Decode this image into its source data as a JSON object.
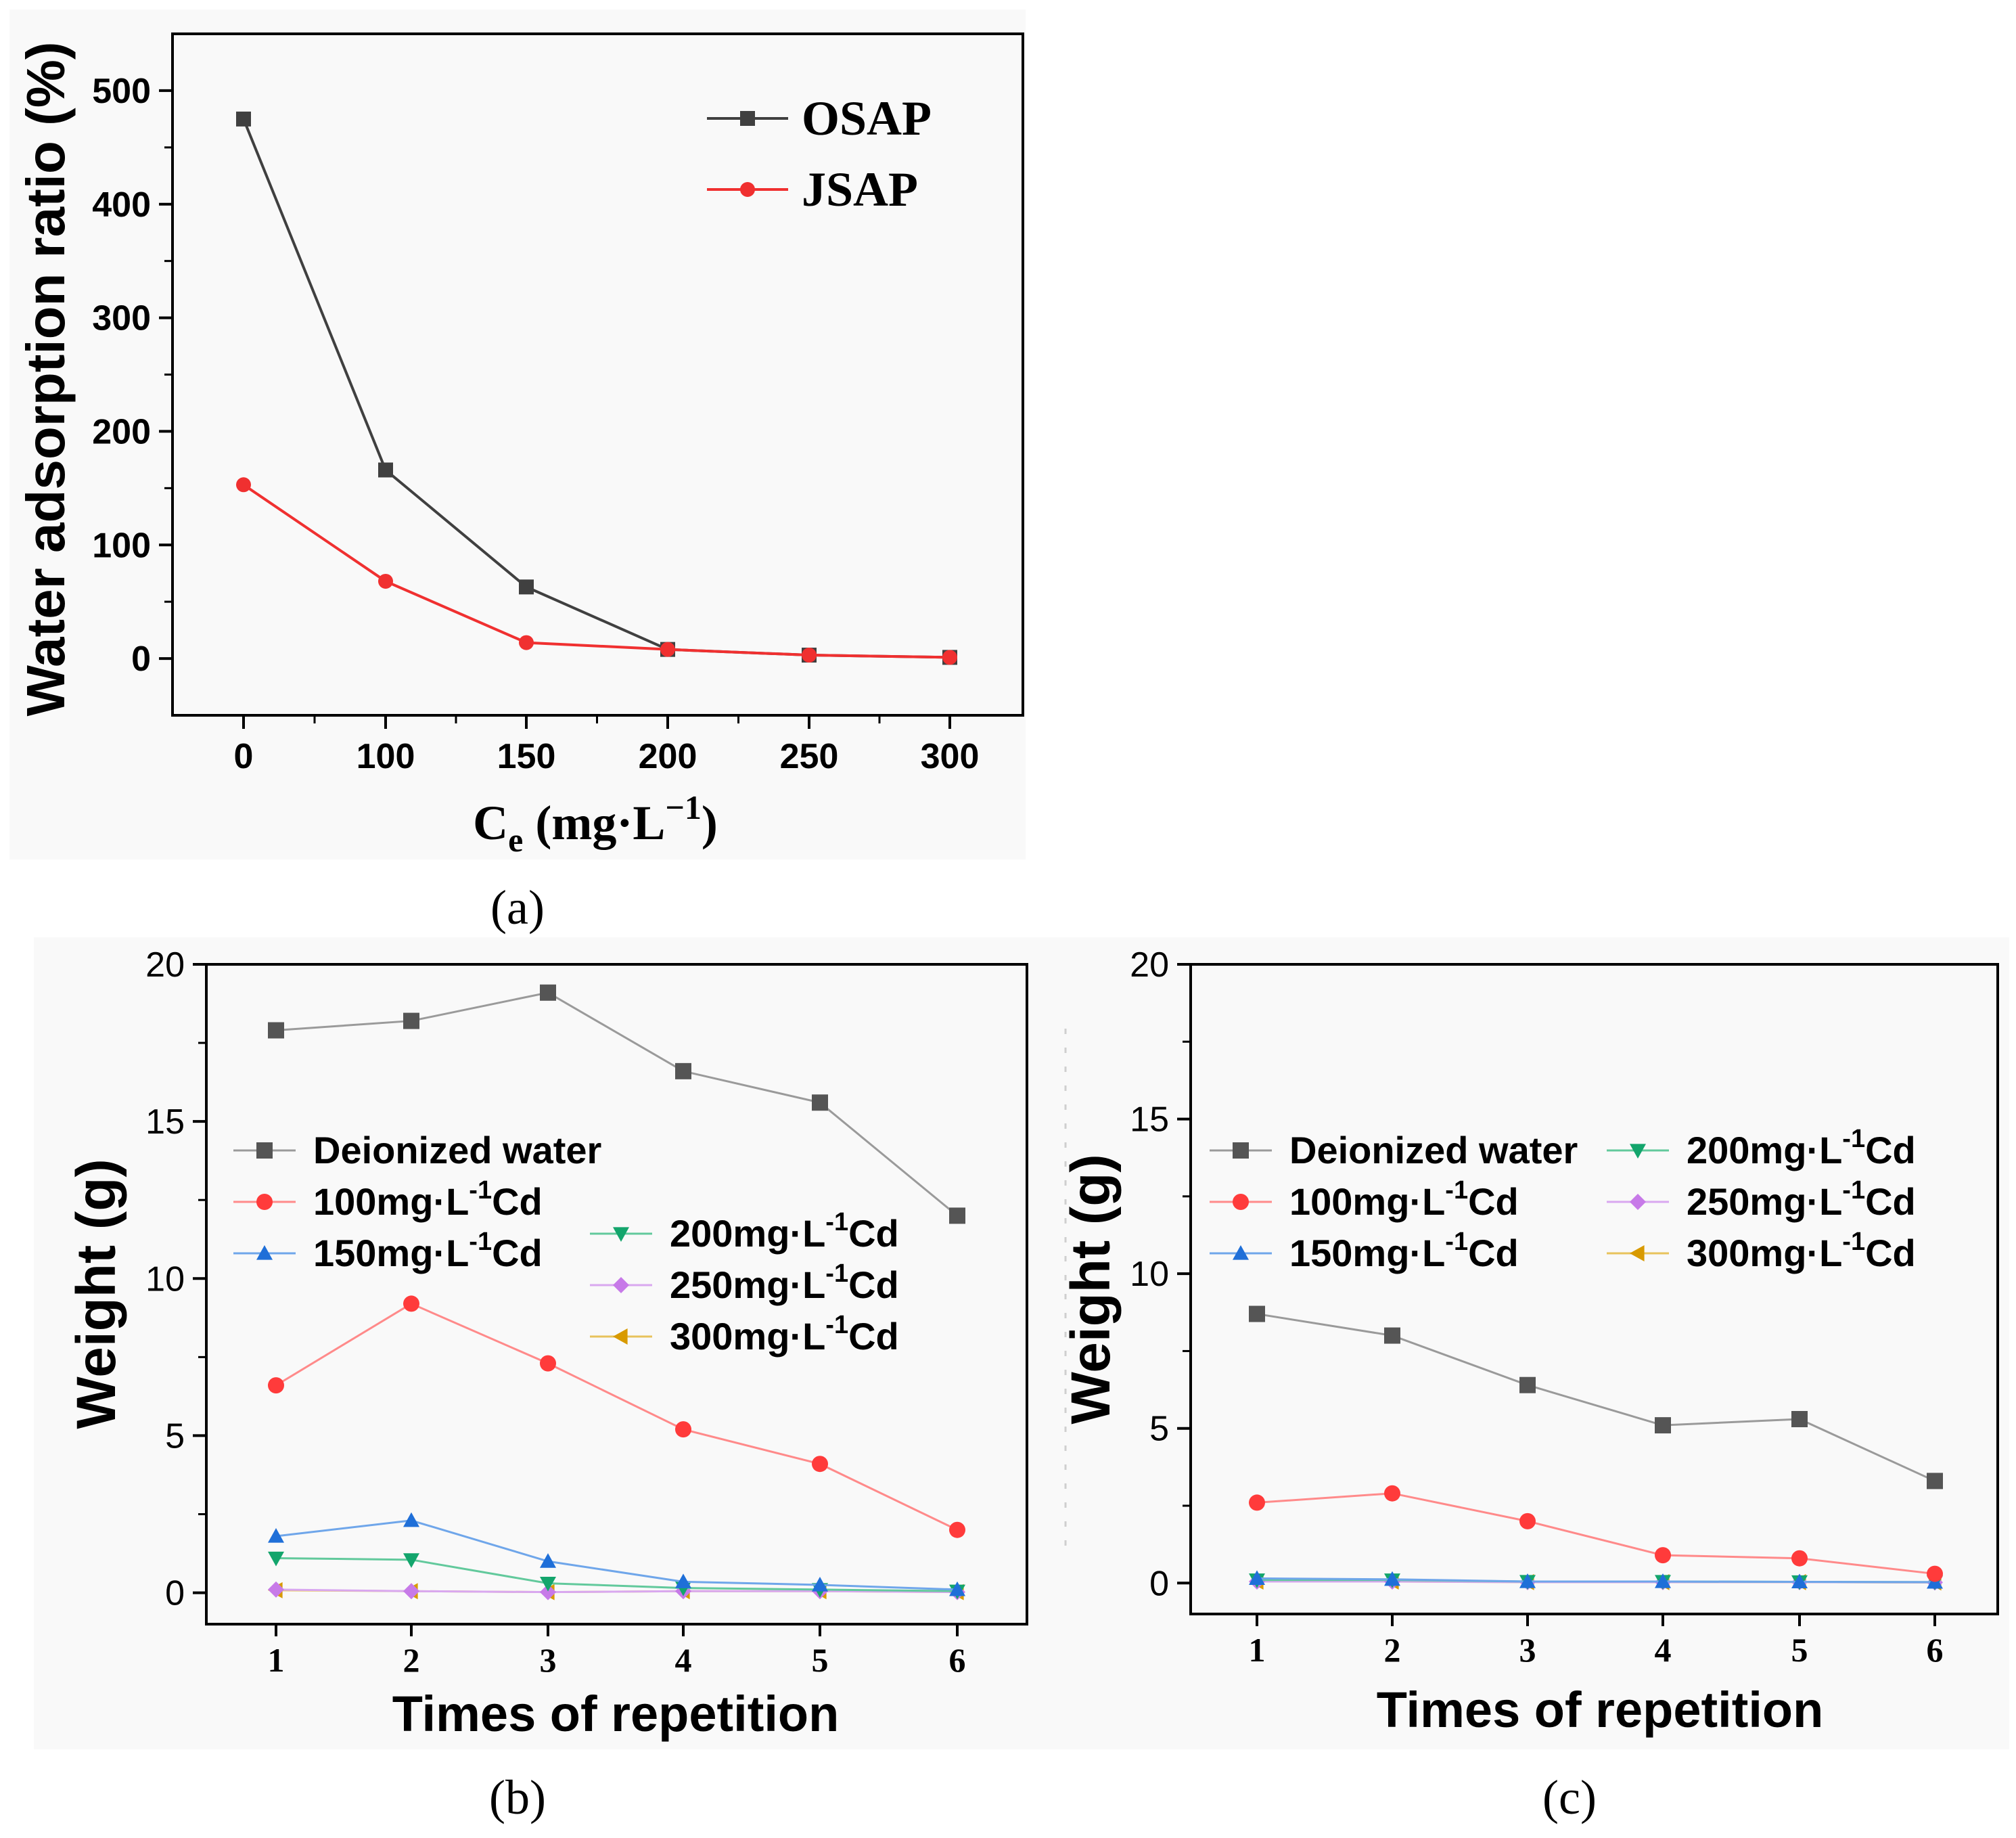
{
  "colors": {
    "osap": "#404040",
    "jsap": "#f03030",
    "deionized": "#555555",
    "cd100": "#ff3b3b",
    "cd150": "#1f6fd8",
    "cd200": "#13a56c",
    "cd250": "#c77ae8",
    "cd300": "#d89a00",
    "line_deionized": "#9a9a9a",
    "line_cd100": "#ff8a8a",
    "line_cd150": "#6fa6ea",
    "line_cd200": "#62c99c",
    "line_cd250": "#d9a8f0",
    "line_cd300": "#e8c35c"
  },
  "chart_data": [
    {
      "type": "line",
      "panel_label": "(a)",
      "xlabel_main": "C",
      "xlabel_sub": "e",
      "xlabel_rest": " (mg·L",
      "xlabel_sup": "−1",
      "xlabel_end": ")",
      "ylabel": "Water adsorption ratio (%)",
      "categories": [
        "0",
        "100",
        "150",
        "200",
        "250",
        "300"
      ],
      "ylim": [
        -50,
        550
      ],
      "yticks": [
        "0",
        "100",
        "200",
        "300",
        "400",
        "500"
      ],
      "legend_position": "top-right",
      "series": [
        {
          "name": "OSAP",
          "marker": "square",
          "values": [
            475,
            166,
            63,
            8,
            3,
            1
          ]
        },
        {
          "name": "JSAP",
          "marker": "circle",
          "values": [
            153,
            68,
            14,
            8,
            3,
            1
          ]
        }
      ]
    },
    {
      "type": "line",
      "panel_label": "(b)",
      "xlabel": "Times of repetition",
      "ylabel": "Weight (g)",
      "x": [
        "1",
        "2",
        "3",
        "4",
        "5",
        "6"
      ],
      "ylim": [
        -1,
        20
      ],
      "yticks": [
        "0",
        "5",
        "10",
        "15",
        "20"
      ],
      "legend_position": "middle-left",
      "series": [
        {
          "name": "Deionized water",
          "label_main": "Deionized water",
          "label_sup": "",
          "label_end": "",
          "marker": "square",
          "values": [
            17.9,
            18.2,
            19.1,
            16.6,
            15.6,
            12.0
          ]
        },
        {
          "name": "100mg·L-1Cd",
          "label_main": "100mg·L",
          "label_sup": "-1",
          "label_end": "Cd",
          "marker": "circle",
          "values": [
            6.6,
            9.2,
            7.3,
            5.2,
            4.1,
            2.0
          ]
        },
        {
          "name": "150mg·L-1Cd",
          "label_main": "150mg·L",
          "label_sup": "-1",
          "label_end": "Cd",
          "marker": "triangle-up",
          "values": [
            1.8,
            2.3,
            1.0,
            0.35,
            0.25,
            0.1
          ]
        },
        {
          "name": "200mg·L-1Cd",
          "label_main": "200mg·L",
          "label_sup": "-1",
          "label_end": "Cd",
          "marker": "triangle-down",
          "values": [
            1.1,
            1.05,
            0.3,
            0.15,
            0.1,
            0.05
          ]
        },
        {
          "name": "250mg·L-1Cd",
          "label_main": "250mg·L",
          "label_sup": "-1",
          "label_end": "Cd",
          "marker": "diamond",
          "values": [
            0.1,
            0.05,
            0.02,
            0.05,
            0.05,
            0.02
          ]
        },
        {
          "name": "300mg·L-1Cd",
          "label_main": "300mg·L",
          "label_sup": "-1",
          "label_end": "Cd",
          "marker": "triangle-left",
          "values": [
            0.08,
            0.05,
            0.02,
            0.05,
            0.05,
            0.02
          ]
        }
      ]
    },
    {
      "type": "line",
      "panel_label": "(c)",
      "xlabel": "Times of repetition",
      "ylabel": "Weight (g)",
      "x": [
        "1",
        "2",
        "3",
        "4",
        "5",
        "6"
      ],
      "ylim": [
        -1,
        20
      ],
      "yticks": [
        "0",
        "5",
        "10",
        "15",
        "20"
      ],
      "legend_position": "middle",
      "series": [
        {
          "name": "Deionized water",
          "label_main": "Deionized water",
          "label_sup": "",
          "label_end": "",
          "marker": "square",
          "values": [
            8.7,
            8.0,
            6.4,
            5.1,
            5.3,
            3.3
          ]
        },
        {
          "name": "100mg·L-1Cd",
          "label_main": "100mg·L",
          "label_sup": "-1",
          "label_end": "Cd",
          "marker": "circle",
          "values": [
            2.6,
            2.9,
            2.0,
            0.9,
            0.8,
            0.3
          ]
        },
        {
          "name": "150mg·L-1Cd",
          "label_main": "150mg·L",
          "label_sup": "-1",
          "label_end": "Cd",
          "marker": "triangle-up",
          "values": [
            0.15,
            0.12,
            0.05,
            0.05,
            0.04,
            0.03
          ]
        },
        {
          "name": "200mg·L-1Cd",
          "label_main": "200mg·L",
          "label_sup": "-1",
          "label_end": "Cd",
          "marker": "triangle-down",
          "values": [
            0.1,
            0.1,
            0.05,
            0.05,
            0.04,
            0.03
          ]
        },
        {
          "name": "250mg·L-1Cd",
          "label_main": "250mg·L",
          "label_sup": "-1",
          "label_end": "Cd",
          "marker": "diamond",
          "values": [
            0.05,
            0.05,
            0.03,
            0.03,
            0.03,
            0.02
          ]
        },
        {
          "name": "300mg·L-1Cd",
          "label_main": "300mg·L",
          "label_sup": "-1",
          "label_end": "Cd",
          "marker": "triangle-left",
          "values": [
            0.05,
            0.05,
            0.03,
            0.03,
            0.03,
            0.02
          ]
        }
      ]
    }
  ]
}
